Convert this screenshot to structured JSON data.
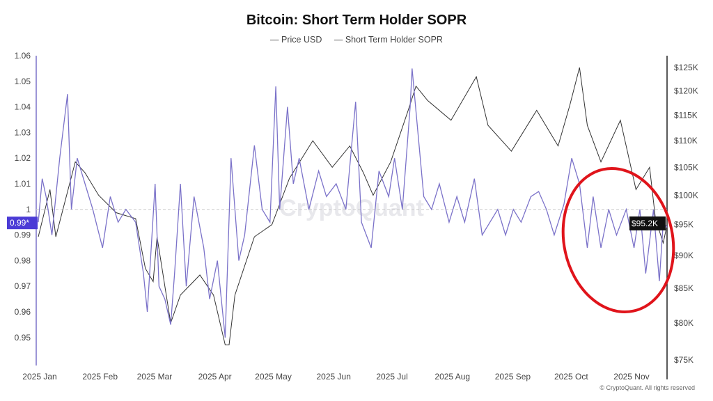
{
  "title": "Bitcoin: Short Term Holder SOPR",
  "credit": "© CryptoQuant. All rights reserved",
  "watermark": "CryptoQuant",
  "chart_data": {
    "type": "line",
    "title": "Bitcoin: Short Term Holder SOPR",
    "legend": [
      "Price USD",
      "Short Term Holder SOPR"
    ],
    "legend_placement": "top-center",
    "colors": {
      "price": "#333333",
      "sopr": "#7b72c9",
      "annotation": "#e0141b",
      "current_badge": "#4b3bd6"
    },
    "x_ticks": [
      "2025 Jan",
      "2025 Feb",
      "2025 Mar",
      "2025 Apr",
      "2025 May",
      "2025 Jun",
      "2025 Jul",
      "2025 Aug",
      "2025 Sep",
      "2025 Oct",
      "2025 Nov"
    ],
    "y_left": {
      "ticks": [
        "1.06",
        "1.05",
        "1.04",
        "1.03",
        "1.02",
        "1.01",
        "1",
        "0.99",
        "0.98",
        "0.97",
        "0.96",
        "0.95"
      ],
      "range": [
        0.94,
        1.06
      ],
      "current_label": "0.99*"
    },
    "y_right": {
      "scale": "log",
      "ticks": [
        "$125K",
        "$120K",
        "$115K",
        "$110K",
        "$105K",
        "$100K",
        "$95K",
        "$90K",
        "$85K",
        "$80K",
        "$75K"
      ],
      "range_k": [
        75,
        125
      ],
      "current_label": "$95.2K"
    },
    "reference_line": 1.0,
    "series": [
      {
        "name": "Price USD",
        "axis": "right",
        "unit": "K USD",
        "points": [
          [
            "2025-01-01",
            93
          ],
          [
            "2025-01-07",
            101
          ],
          [
            "2025-01-10",
            93
          ],
          [
            "2025-01-20",
            106
          ],
          [
            "2025-01-25",
            104
          ],
          [
            "2025-02-01",
            100
          ],
          [
            "2025-02-10",
            97
          ],
          [
            "2025-02-20",
            96
          ],
          [
            "2025-02-25",
            88
          ],
          [
            "2025-03-01",
            86
          ],
          [
            "2025-03-03",
            93
          ],
          [
            "2025-03-10",
            80
          ],
          [
            "2025-03-15",
            84
          ],
          [
            "2025-03-25",
            87
          ],
          [
            "2025-04-01",
            84
          ],
          [
            "2025-04-07",
            77
          ],
          [
            "2025-04-09",
            77
          ],
          [
            "2025-04-12",
            84
          ],
          [
            "2025-04-22",
            93
          ],
          [
            "2025-05-01",
            95
          ],
          [
            "2025-05-10",
            103
          ],
          [
            "2025-05-22",
            110
          ],
          [
            "2025-06-01",
            105
          ],
          [
            "2025-06-10",
            109
          ],
          [
            "2025-06-17",
            104
          ],
          [
            "2025-06-22",
            100
          ],
          [
            "2025-07-01",
            106
          ],
          [
            "2025-07-10",
            116
          ],
          [
            "2025-07-14",
            121
          ],
          [
            "2025-07-20",
            118
          ],
          [
            "2025-08-01",
            114
          ],
          [
            "2025-08-14",
            123
          ],
          [
            "2025-08-20",
            113
          ],
          [
            "2025-09-01",
            108
          ],
          [
            "2025-09-14",
            116
          ],
          [
            "2025-09-25",
            109
          ],
          [
            "2025-10-01",
            117
          ],
          [
            "2025-10-06",
            125
          ],
          [
            "2025-10-10",
            113
          ],
          [
            "2025-10-17",
            106
          ],
          [
            "2025-10-27",
            114
          ],
          [
            "2025-11-04",
            101
          ],
          [
            "2025-11-11",
            105
          ],
          [
            "2025-11-14",
            96
          ],
          [
            "2025-11-18",
            92
          ],
          [
            "2025-11-20",
            95
          ]
        ]
      },
      {
        "name": "Short Term Holder SOPR",
        "axis": "left",
        "points": [
          [
            "2025-01-01",
            0.995
          ],
          [
            "2025-01-03",
            1.012
          ],
          [
            "2025-01-05",
            1.005
          ],
          [
            "2025-01-08",
            0.99
          ],
          [
            "2025-01-12",
            1.02
          ],
          [
            "2025-01-16",
            1.045
          ],
          [
            "2025-01-18",
            1.0
          ],
          [
            "2025-01-21",
            1.02
          ],
          [
            "2025-01-25",
            1.01
          ],
          [
            "2025-01-29",
            1.0
          ],
          [
            "2025-02-03",
            0.985
          ],
          [
            "2025-02-07",
            1.005
          ],
          [
            "2025-02-11",
            0.995
          ],
          [
            "2025-02-15",
            1.0
          ],
          [
            "2025-02-20",
            0.995
          ],
          [
            "2025-02-24",
            0.975
          ],
          [
            "2025-02-26",
            0.96
          ],
          [
            "2025-03-02",
            1.01
          ],
          [
            "2025-03-04",
            0.97
          ],
          [
            "2025-03-07",
            0.965
          ],
          [
            "2025-03-10",
            0.955
          ],
          [
            "2025-03-12",
            0.975
          ],
          [
            "2025-03-15",
            1.01
          ],
          [
            "2025-03-18",
            0.97
          ],
          [
            "2025-03-22",
            1.005
          ],
          [
            "2025-03-27",
            0.985
          ],
          [
            "2025-03-30",
            0.965
          ],
          [
            "2025-04-03",
            0.98
          ],
          [
            "2025-04-07",
            0.95
          ],
          [
            "2025-04-10",
            1.02
          ],
          [
            "2025-04-14",
            0.98
          ],
          [
            "2025-04-17",
            0.99
          ],
          [
            "2025-04-22",
            1.025
          ],
          [
            "2025-04-26",
            1.0
          ],
          [
            "2025-04-30",
            0.995
          ],
          [
            "2025-05-03",
            1.048
          ],
          [
            "2025-05-05",
            1.0
          ],
          [
            "2025-05-09",
            1.04
          ],
          [
            "2025-05-12",
            1.01
          ],
          [
            "2025-05-15",
            1.02
          ],
          [
            "2025-05-20",
            1.0
          ],
          [
            "2025-05-25",
            1.015
          ],
          [
            "2025-05-29",
            1.005
          ],
          [
            "2025-06-03",
            1.01
          ],
          [
            "2025-06-08",
            1.0
          ],
          [
            "2025-06-13",
            1.042
          ],
          [
            "2025-06-16",
            0.995
          ],
          [
            "2025-06-21",
            0.985
          ],
          [
            "2025-06-25",
            1.015
          ],
          [
            "2025-06-30",
            1.005
          ],
          [
            "2025-07-03",
            1.02
          ],
          [
            "2025-07-07",
            1.0
          ],
          [
            "2025-07-11",
            1.04
          ],
          [
            "2025-07-12",
            1.055
          ],
          [
            "2025-07-15",
            1.03
          ],
          [
            "2025-07-18",
            1.005
          ],
          [
            "2025-07-22",
            1.0
          ],
          [
            "2025-07-26",
            1.01
          ],
          [
            "2025-07-31",
            0.995
          ],
          [
            "2025-08-04",
            1.005
          ],
          [
            "2025-08-08",
            0.995
          ],
          [
            "2025-08-13",
            1.012
          ],
          [
            "2025-08-17",
            0.99
          ],
          [
            "2025-08-21",
            0.995
          ],
          [
            "2025-08-25",
            1.0
          ],
          [
            "2025-08-29",
            0.99
          ],
          [
            "2025-09-02",
            1.0
          ],
          [
            "2025-09-06",
            0.995
          ],
          [
            "2025-09-11",
            1.005
          ],
          [
            "2025-09-15",
            1.007
          ],
          [
            "2025-09-19",
            1.0
          ],
          [
            "2025-09-23",
            0.99
          ],
          [
            "2025-09-28",
            1.002
          ],
          [
            "2025-10-02",
            1.02
          ],
          [
            "2025-10-06",
            1.01
          ],
          [
            "2025-10-10",
            0.985
          ],
          [
            "2025-10-13",
            1.005
          ],
          [
            "2025-10-17",
            0.985
          ],
          [
            "2025-10-21",
            1.0
          ],
          [
            "2025-10-25",
            0.99
          ],
          [
            "2025-10-30",
            1.0
          ],
          [
            "2025-11-03",
            0.985
          ],
          [
            "2025-11-06",
            1.0
          ],
          [
            "2025-11-09",
            0.975
          ],
          [
            "2025-11-13",
            1.0
          ],
          [
            "2025-11-16",
            0.972
          ],
          [
            "2025-11-18",
            0.995
          ],
          [
            "2025-11-20",
            0.993
          ]
        ]
      }
    ]
  }
}
